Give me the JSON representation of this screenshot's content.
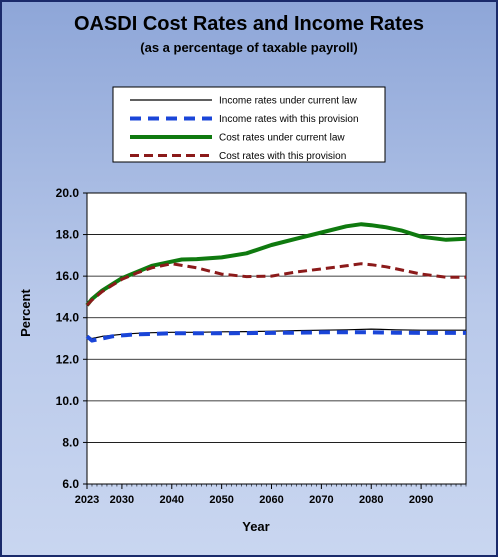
{
  "chart_data": {
    "type": "line",
    "title": "OASDI Cost Rates and Income Rates",
    "subtitle": "(as a percentage of taxable payroll)",
    "xlabel": "Year",
    "ylabel": "Percent",
    "xlim": [
      2023,
      2099
    ],
    "ylim": [
      6.0,
      20.0
    ],
    "yticks": [
      "6.0",
      "8.0",
      "10.0",
      "12.0",
      "14.0",
      "16.0",
      "18.0",
      "20.0"
    ],
    "xticks": [
      "2023",
      "2030",
      "2040",
      "2050",
      "2060",
      "2070",
      "2080",
      "2090"
    ],
    "grid": true,
    "legend": "top",
    "series": [
      {
        "name": "Income rates under current law",
        "color": "#000000",
        "dash": "solid",
        "width": 1.2,
        "x": [
          2023,
          2024,
          2025,
          2026,
          2028,
          2030,
          2033,
          2036,
          2040,
          2045,
          2050,
          2055,
          2060,
          2065,
          2070,
          2075,
          2080,
          2085,
          2090,
          2095,
          2099
        ],
        "values": [
          13.1,
          13.0,
          13.05,
          13.1,
          13.15,
          13.2,
          13.25,
          13.28,
          13.3,
          13.3,
          13.32,
          13.33,
          13.35,
          13.38,
          13.4,
          13.42,
          13.45,
          13.42,
          13.4,
          13.4,
          13.4
        ]
      },
      {
        "name": "Income rates with this provision",
        "color": "#1a45d8",
        "dash": "dashed",
        "width": 4,
        "x": [
          2023,
          2024,
          2025,
          2026,
          2028,
          2030,
          2033,
          2036,
          2040,
          2045,
          2050,
          2055,
          2060,
          2065,
          2070,
          2075,
          2080,
          2085,
          2090,
          2095,
          2099
        ],
        "values": [
          13.1,
          12.9,
          12.95,
          13.0,
          13.1,
          13.15,
          13.2,
          13.22,
          13.25,
          13.25,
          13.25,
          13.26,
          13.27,
          13.28,
          13.3,
          13.3,
          13.3,
          13.28,
          13.27,
          13.27,
          13.27
        ]
      },
      {
        "name": "Cost rates under current law",
        "color": "#0f7a0f",
        "dash": "solid",
        "width": 4,
        "x": [
          2023,
          2024,
          2026,
          2028,
          2030,
          2033,
          2036,
          2040,
          2042,
          2045,
          2050,
          2055,
          2060,
          2065,
          2070,
          2075,
          2078,
          2080,
          2083,
          2086,
          2090,
          2095,
          2099
        ],
        "values": [
          14.6,
          14.9,
          15.3,
          15.6,
          15.9,
          16.2,
          16.5,
          16.7,
          16.8,
          16.82,
          16.9,
          17.1,
          17.5,
          17.8,
          18.1,
          18.4,
          18.5,
          18.45,
          18.35,
          18.2,
          17.9,
          17.75,
          17.8
        ]
      },
      {
        "name": "Cost rates with this provision",
        "color": "#8b1a1a",
        "dash": "dashed",
        "width": 3,
        "x": [
          2023,
          2024,
          2026,
          2028,
          2030,
          2033,
          2036,
          2040,
          2045,
          2050,
          2055,
          2060,
          2065,
          2070,
          2075,
          2078,
          2080,
          2083,
          2086,
          2090,
          2095,
          2099
        ],
        "values": [
          14.6,
          14.85,
          15.25,
          15.55,
          15.85,
          16.15,
          16.4,
          16.6,
          16.4,
          16.1,
          15.98,
          16.0,
          16.2,
          16.35,
          16.5,
          16.6,
          16.55,
          16.45,
          16.3,
          16.1,
          15.95,
          15.95
        ]
      }
    ]
  }
}
